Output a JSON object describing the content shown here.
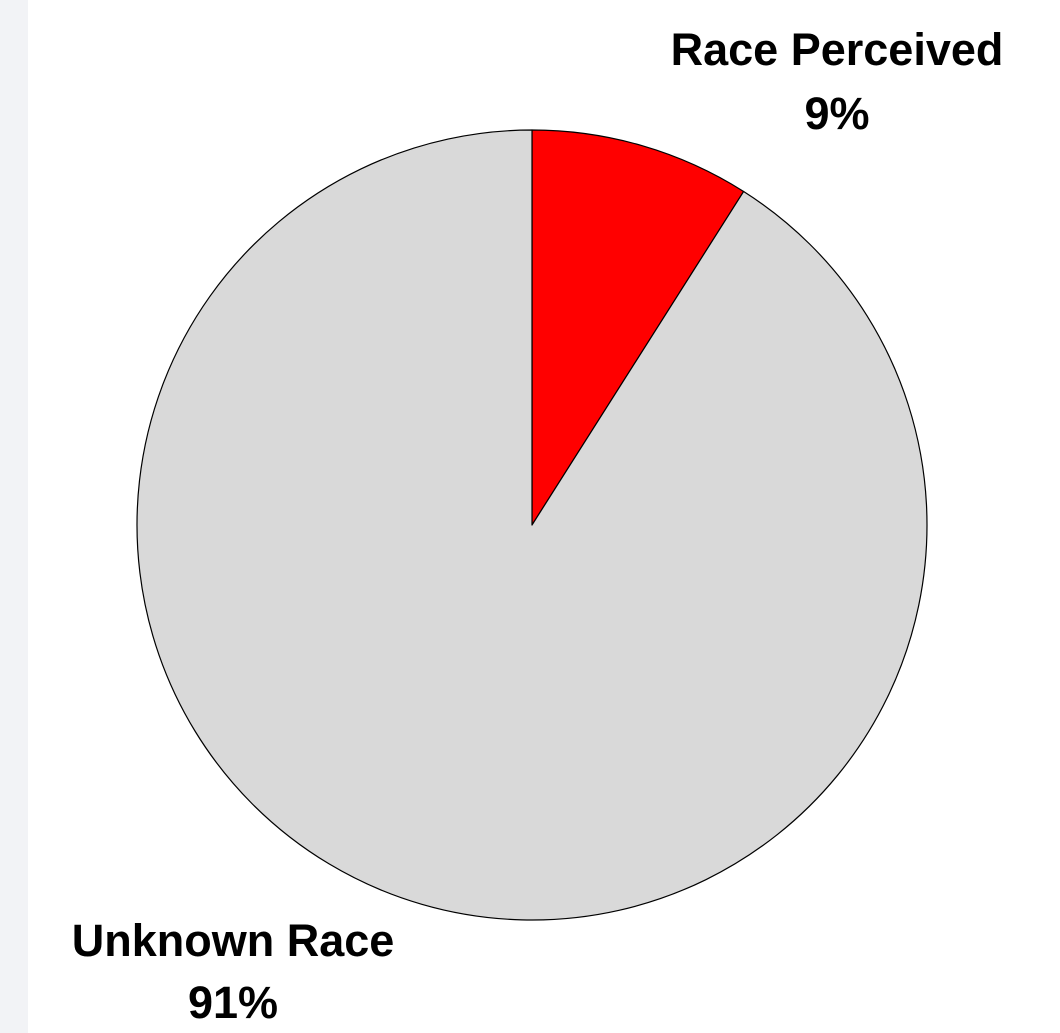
{
  "chart_data": {
    "type": "pie",
    "slices": [
      {
        "name": "Race Perceived",
        "value": 9,
        "value_label": "9%",
        "color": "#ff0000"
      },
      {
        "name": "Unknown Race",
        "value": 91,
        "value_label": "91%",
        "color": "#d9d9d9"
      }
    ],
    "start": "12 o'clock",
    "direction": "clockwise",
    "outline_color": "#000000",
    "legend": "none"
  }
}
